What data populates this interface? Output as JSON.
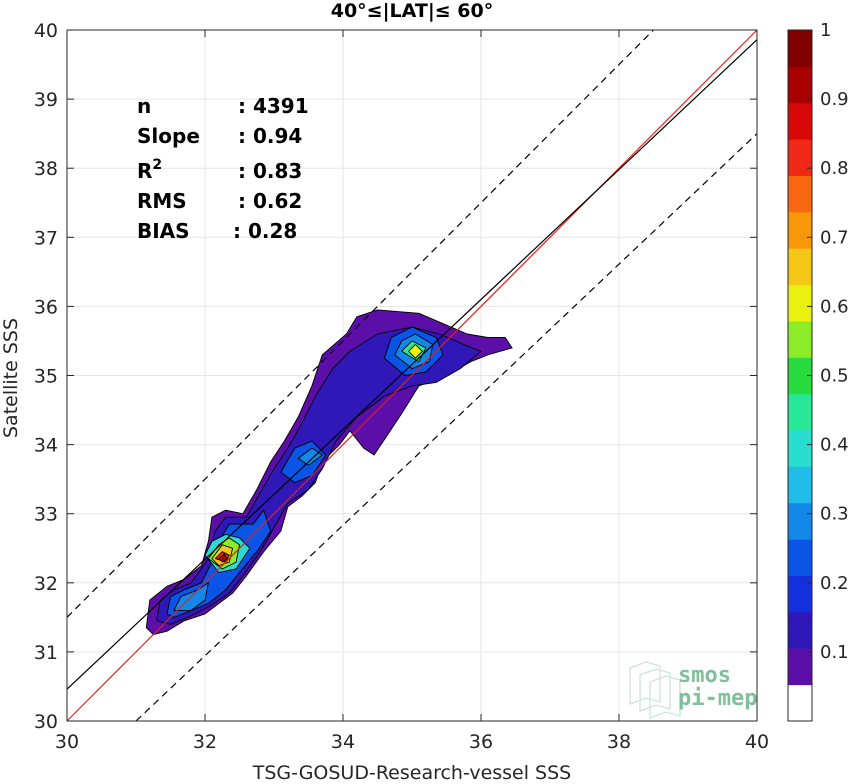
{
  "chart_data": {
    "type": "heatmap",
    "title": "40°≤|LAT|≤ 60°",
    "xlabel": "TSG-GOSUD-Research-vessel SSS",
    "ylabel": "Satellite SSS",
    "xlim": [
      30,
      40
    ],
    "ylim": [
      30,
      40
    ],
    "x_ticks": [
      "30",
      "32",
      "34",
      "36",
      "38",
      "40"
    ],
    "y_ticks": [
      "30",
      "31",
      "32",
      "33",
      "34",
      "35",
      "36",
      "37",
      "38",
      "39",
      "40"
    ],
    "grid": true,
    "colorbar": {
      "range": [
        0,
        1
      ],
      "ticks": [
        "0.1",
        "0.2",
        "0.3",
        "0.4",
        "0.5",
        "0.6",
        "0.7",
        "0.8",
        "0.9",
        "1"
      ],
      "levels": [
        "#ffffff",
        "#5c0fa8",
        "#3018b8",
        "#1430dc",
        "#0a55e6",
        "#1488e8",
        "#20bcea",
        "#28ddd0",
        "#28e898",
        "#28dc40",
        "#8cec28",
        "#eaf010",
        "#f5c818",
        "#f89808",
        "#f86810",
        "#f02818",
        "#d80808",
        "#a80000",
        "#800000"
      ]
    },
    "lines": [
      {
        "name": "1:1",
        "color": "#e0201a",
        "points": [
          [
            30,
            30
          ],
          [
            40,
            40
          ]
        ]
      },
      {
        "name": "fit",
        "color": "#000000",
        "points": [
          [
            30,
            30.46
          ],
          [
            40,
            39.86
          ]
        ]
      },
      {
        "name": "upper",
        "color": "#000000",
        "dashed": true,
        "points": [
          [
            30,
            31.5
          ],
          [
            38.5,
            40
          ]
        ]
      },
      {
        "name": "lower",
        "color": "#000000",
        "dashed": true,
        "points": [
          [
            31,
            30
          ],
          [
            40,
            38.5
          ]
        ]
      }
    ],
    "stats": [
      {
        "label": "n",
        "value": ": 4391"
      },
      {
        "label": "Slope",
        "value": ": 0.94"
      },
      {
        "label": "R",
        "sup": "2",
        "value": ": 0.83"
      },
      {
        "label": "RMS",
        "value": ": 0.62"
      },
      {
        "label": "BIAS",
        "value": ": 0.28"
      }
    ],
    "contours": [
      {
        "level": 0.05,
        "points": [
          [
            31.15,
            31.35
          ],
          [
            31.2,
            31.75
          ],
          [
            31.45,
            31.95
          ],
          [
            31.7,
            32.05
          ],
          [
            31.95,
            32.25
          ],
          [
            32.05,
            32.6
          ],
          [
            32.1,
            32.95
          ],
          [
            32.3,
            33.05
          ],
          [
            32.55,
            33.0
          ],
          [
            32.75,
            33.35
          ],
          [
            32.95,
            33.75
          ],
          [
            33.15,
            34.05
          ],
          [
            33.35,
            34.4
          ],
          [
            33.55,
            34.85
          ],
          [
            33.7,
            35.3
          ],
          [
            34.05,
            35.6
          ],
          [
            34.2,
            35.85
          ],
          [
            34.5,
            35.95
          ],
          [
            35.1,
            35.9
          ],
          [
            35.45,
            35.75
          ],
          [
            35.8,
            35.6
          ],
          [
            36.1,
            35.55
          ],
          [
            36.35,
            35.55
          ],
          [
            36.45,
            35.4
          ],
          [
            36.1,
            35.3
          ],
          [
            35.85,
            35.2
          ],
          [
            35.5,
            35.0
          ],
          [
            35.1,
            34.85
          ],
          [
            34.85,
            34.45
          ],
          [
            34.45,
            33.85
          ],
          [
            34.3,
            33.95
          ],
          [
            34.1,
            34.2
          ],
          [
            33.95,
            34.0
          ],
          [
            33.7,
            33.75
          ],
          [
            33.6,
            33.45
          ],
          [
            33.4,
            33.25
          ],
          [
            33.2,
            33.1
          ],
          [
            33.1,
            32.75
          ],
          [
            32.85,
            32.45
          ],
          [
            32.6,
            32.1
          ],
          [
            32.4,
            31.85
          ],
          [
            32.2,
            31.7
          ],
          [
            32.0,
            31.55
          ],
          [
            31.7,
            31.45
          ],
          [
            31.45,
            31.3
          ],
          [
            31.25,
            31.25
          ]
        ]
      },
      {
        "level": 0.1,
        "points": [
          [
            31.3,
            31.45
          ],
          [
            31.35,
            31.75
          ],
          [
            31.55,
            31.9
          ],
          [
            31.8,
            32.0
          ],
          [
            32.05,
            32.35
          ],
          [
            32.15,
            32.75
          ],
          [
            32.3,
            32.95
          ],
          [
            32.6,
            32.95
          ],
          [
            32.8,
            33.3
          ],
          [
            33.0,
            33.65
          ],
          [
            33.2,
            33.95
          ],
          [
            33.4,
            34.3
          ],
          [
            33.6,
            34.7
          ],
          [
            33.85,
            35.1
          ],
          [
            34.1,
            35.35
          ],
          [
            34.5,
            35.6
          ],
          [
            35.0,
            35.7
          ],
          [
            35.4,
            35.6
          ],
          [
            35.75,
            35.45
          ],
          [
            36.0,
            35.35
          ],
          [
            35.7,
            35.1
          ],
          [
            35.35,
            34.9
          ],
          [
            35.0,
            34.85
          ],
          [
            34.6,
            34.7
          ],
          [
            34.2,
            34.4
          ],
          [
            33.9,
            34.05
          ],
          [
            33.7,
            33.65
          ],
          [
            33.5,
            33.35
          ],
          [
            33.2,
            33.15
          ],
          [
            33.0,
            32.8
          ],
          [
            32.8,
            32.45
          ],
          [
            32.55,
            32.1
          ],
          [
            32.35,
            31.85
          ],
          [
            32.05,
            31.65
          ],
          [
            31.75,
            31.5
          ],
          [
            31.5,
            31.4
          ]
        ]
      },
      {
        "level": 0.2,
        "points": [
          [
            31.45,
            31.55
          ],
          [
            31.5,
            31.8
          ],
          [
            31.7,
            31.9
          ],
          [
            31.95,
            32.0
          ],
          [
            32.1,
            32.3
          ],
          [
            32.2,
            32.6
          ],
          [
            32.35,
            32.85
          ],
          [
            32.7,
            32.85
          ],
          [
            32.85,
            33.05
          ],
          [
            32.95,
            32.75
          ],
          [
            32.75,
            32.45
          ],
          [
            32.5,
            32.15
          ],
          [
            32.3,
            31.9
          ],
          [
            32.05,
            31.7
          ],
          [
            31.8,
            31.6
          ],
          [
            31.55,
            31.5
          ]
        ]
      },
      {
        "level": 0.3,
        "points": [
          [
            31.55,
            31.6
          ],
          [
            31.65,
            31.8
          ],
          [
            31.9,
            31.9
          ],
          [
            32.05,
            32.0
          ],
          [
            32.0,
            31.75
          ],
          [
            31.8,
            31.6
          ]
        ]
      },
      {
        "level": 0.2,
        "points": [
          [
            33.1,
            33.6
          ],
          [
            33.3,
            33.95
          ],
          [
            33.55,
            34.05
          ],
          [
            33.75,
            33.85
          ],
          [
            33.55,
            33.55
          ],
          [
            33.3,
            33.45
          ]
        ]
      },
      {
        "level": 0.3,
        "points": [
          [
            33.35,
            33.8
          ],
          [
            33.55,
            33.95
          ],
          [
            33.7,
            33.85
          ],
          [
            33.5,
            33.7
          ]
        ]
      },
      {
        "level": 0.2,
        "points": [
          [
            34.6,
            35.25
          ],
          [
            34.7,
            35.55
          ],
          [
            35.0,
            35.7
          ],
          [
            35.35,
            35.55
          ],
          [
            35.45,
            35.3
          ],
          [
            35.2,
            35.05
          ],
          [
            34.9,
            35.0
          ]
        ]
      },
      {
        "level": 0.3,
        "points": [
          [
            34.75,
            35.3
          ],
          [
            34.85,
            35.5
          ],
          [
            35.05,
            35.6
          ],
          [
            35.3,
            35.45
          ],
          [
            35.25,
            35.2
          ],
          [
            35.0,
            35.1
          ]
        ]
      },
      {
        "level": 0.45,
        "points": [
          [
            34.85,
            35.35
          ],
          [
            35.0,
            35.5
          ],
          [
            35.2,
            35.4
          ],
          [
            35.1,
            35.2
          ]
        ]
      },
      {
        "level": 0.6,
        "points": [
          [
            34.95,
            35.35
          ],
          [
            35.05,
            35.45
          ],
          [
            35.15,
            35.35
          ],
          [
            35.05,
            35.25
          ]
        ]
      },
      {
        "level": 0.4,
        "points": [
          [
            32.0,
            32.4
          ],
          [
            32.1,
            32.6
          ],
          [
            32.3,
            32.7
          ],
          [
            32.5,
            32.65
          ],
          [
            32.65,
            32.5
          ],
          [
            32.45,
            32.2
          ],
          [
            32.2,
            32.15
          ]
        ]
      },
      {
        "level": 0.55,
        "points": [
          [
            32.05,
            32.35
          ],
          [
            32.2,
            32.55
          ],
          [
            32.35,
            32.65
          ],
          [
            32.5,
            32.55
          ],
          [
            32.45,
            32.3
          ],
          [
            32.25,
            32.2
          ]
        ]
      },
      {
        "level": 0.65,
        "points": [
          [
            32.1,
            32.35
          ],
          [
            32.25,
            32.55
          ],
          [
            32.4,
            32.5
          ],
          [
            32.35,
            32.3
          ],
          [
            32.2,
            32.25
          ]
        ]
      },
      {
        "level": 0.85,
        "points": [
          [
            32.15,
            32.35
          ],
          [
            32.25,
            32.45
          ],
          [
            32.35,
            32.4
          ],
          [
            32.3,
            32.3
          ]
        ]
      },
      {
        "level": 0.95,
        "points": [
          [
            32.2,
            32.35
          ],
          [
            32.28,
            32.42
          ],
          [
            32.32,
            32.35
          ],
          [
            32.26,
            32.3
          ]
        ]
      }
    ]
  },
  "logo": {
    "line1": "smos",
    "line2": "pi-mep"
  }
}
